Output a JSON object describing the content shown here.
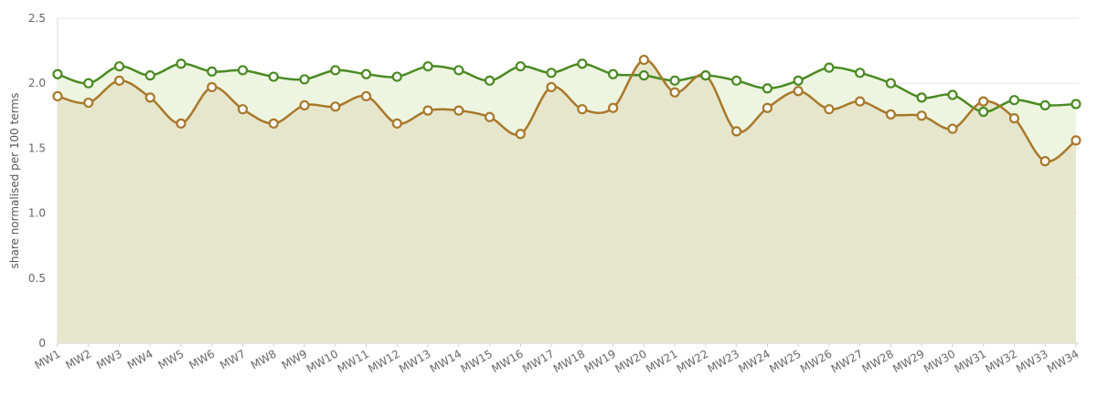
{
  "chart_data": {
    "type": "line",
    "title": "",
    "xlabel": "",
    "ylabel": "share normalised per 100 terms",
    "ylim": [
      0,
      2.5
    ],
    "yticks": [
      0,
      0.5,
      1.0,
      1.5,
      2.0,
      2.5
    ],
    "ytick_labels": [
      "0",
      "0.5",
      "1.0",
      "1.5",
      "2.0",
      "2.5"
    ],
    "grid": "horizontal",
    "legend": "none",
    "categories": [
      "MW1",
      "MW2",
      "MW3",
      "MW4",
      "MW5",
      "MW6",
      "MW7",
      "MW8",
      "MW9",
      "MW10",
      "MW11",
      "MW12",
      "MW13",
      "MW14",
      "MW15",
      "MW16",
      "MW17",
      "MW18",
      "MW19",
      "MW20",
      "MW21",
      "MW22",
      "MW23",
      "MW24",
      "MW25",
      "MW26",
      "MW27",
      "MW28",
      "MW29",
      "MW30",
      "MW31",
      "MW32",
      "MW33",
      "MW34"
    ],
    "series": [
      {
        "color": "#4a8a22",
        "fill": "#edf5e1",
        "values": [
          2.07,
          2.0,
          2.13,
          2.06,
          2.15,
          2.09,
          2.1,
          2.05,
          2.03,
          2.1,
          2.07,
          2.05,
          2.13,
          2.1,
          2.02,
          2.13,
          2.08,
          2.15,
          2.07,
          2.06,
          2.02,
          2.06,
          2.02,
          1.96,
          2.02,
          2.12,
          2.08,
          2.0,
          1.89,
          1.91,
          1.78,
          1.87,
          1.83,
          1.84
        ]
      },
      {
        "color": "#a8782a",
        "fill": "#e6e6cc",
        "values": [
          1.9,
          1.85,
          2.02,
          1.89,
          1.69,
          1.97,
          1.8,
          1.69,
          1.83,
          1.82,
          1.9,
          1.69,
          1.79,
          1.79,
          1.74,
          1.61,
          1.97,
          1.8,
          1.81,
          2.18,
          1.93,
          2.06,
          1.63,
          1.81,
          1.94,
          1.8,
          1.86,
          1.76,
          1.75,
          1.65,
          1.86,
          1.73,
          1.4,
          1.56
        ]
      }
    ]
  }
}
